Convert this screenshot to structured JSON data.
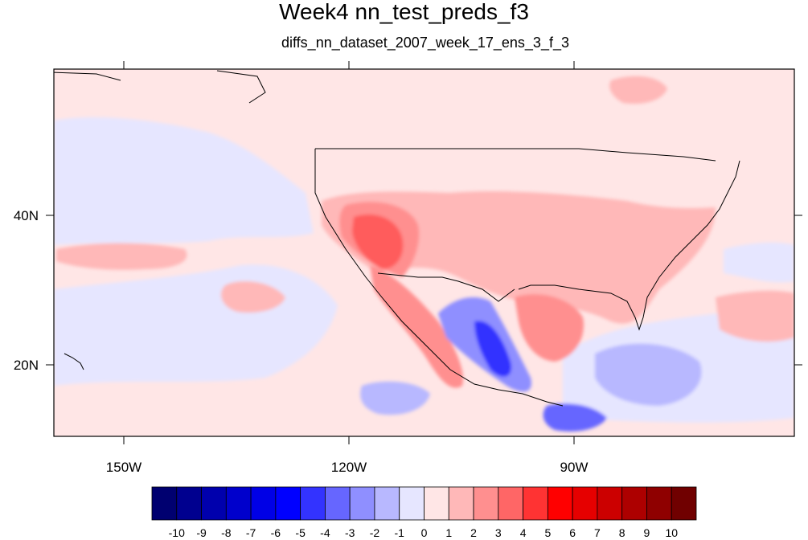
{
  "title": "Week4 nn_test_preds_f3",
  "subtitle": "diffs_nn_dataset_2007_week_17_ens_3_f_3",
  "map": {
    "lat_labels": [
      "40N",
      "20N"
    ],
    "lon_labels": [
      "150W",
      "120W",
      "90W"
    ]
  },
  "colorbar": {
    "labels": [
      "-10",
      "-9",
      "-8",
      "-7",
      "-6",
      "-5",
      "-4",
      "-3",
      "-2",
      "-1",
      "0",
      "1",
      "2",
      "3",
      "4",
      "5",
      "6",
      "7",
      "8",
      "9",
      "10"
    ],
    "colors": [
      "#000070",
      "#00008f",
      "#0000ad",
      "#0000cc",
      "#0000e6",
      "#0000ff",
      "#3333ff",
      "#6666ff",
      "#8f8fff",
      "#b8b8ff",
      "#e6e6ff",
      "#ffe6e6",
      "#ffb8b8",
      "#ff8f8f",
      "#ff6666",
      "#ff3333",
      "#ff0000",
      "#e60000",
      "#cc0000",
      "#ad0000",
      "#8f0000",
      "#700000"
    ]
  }
}
